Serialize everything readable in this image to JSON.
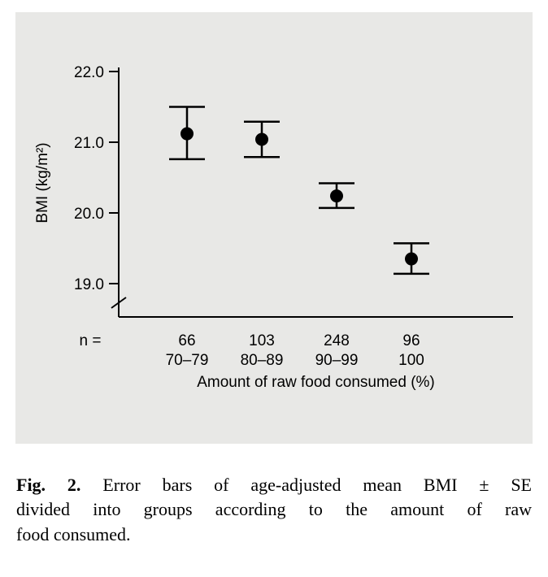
{
  "chart_data": {
    "type": "scatter",
    "title": "",
    "ylabel": "BMI (kg/m²)",
    "xlabel": "Amount of raw food consumed (%)",
    "ylim": [
      19.0,
      22.0
    ],
    "yticks": [
      22.0,
      21.0,
      20.0,
      19.0
    ],
    "axis_break": true,
    "grid": false,
    "legend": "none",
    "groups_label": "n =",
    "categories": [
      "70–79",
      "80–89",
      "90–99",
      "100"
    ],
    "n": [
      66,
      103,
      248,
      96
    ],
    "series": [
      {
        "name": "Age-adjusted mean BMI ± SE",
        "means": [
          21.12,
          21.04,
          20.24,
          19.35
        ],
        "upper": [
          21.5,
          21.29,
          20.42,
          19.57
        ],
        "lower": [
          20.76,
          20.79,
          20.07,
          19.14
        ]
      }
    ],
    "colors": {
      "panel_background": "#e8e8e6",
      "axis": "#000000",
      "marker": "#000000"
    }
  },
  "caption": {
    "label": "Fig. 2.",
    "lines": [
      "Error bars of age-adjusted mean BMI ± SE",
      "divided into groups according to the amount of raw",
      "food consumed."
    ]
  }
}
